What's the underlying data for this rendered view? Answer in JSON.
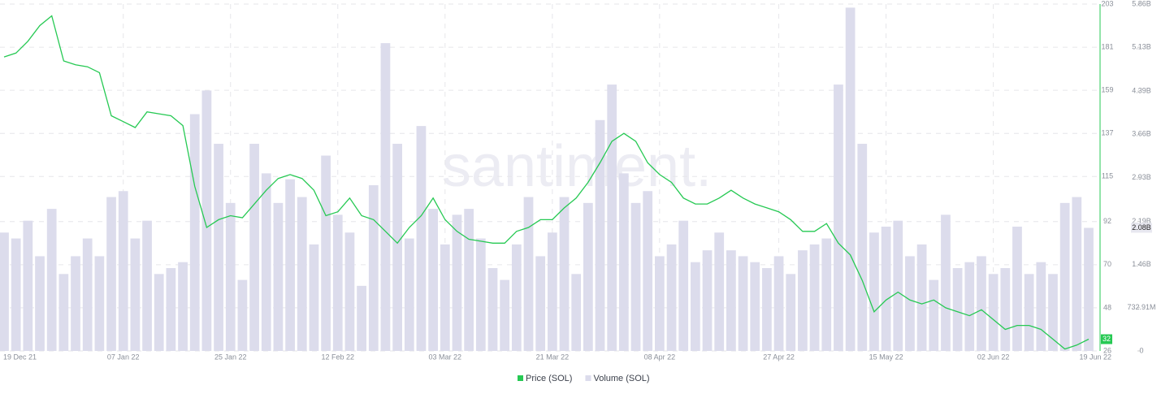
{
  "chart_data": {
    "type": "bar-line",
    "watermark": "santiment.",
    "categories": [
      "19 Dec 21",
      null,
      null,
      null,
      null,
      null,
      null,
      null,
      null,
      null,
      "07 Jan 22",
      null,
      null,
      null,
      null,
      null,
      null,
      null,
      null,
      "25 Jan 22",
      null,
      null,
      null,
      null,
      null,
      null,
      null,
      null,
      "12 Feb 22",
      null,
      null,
      null,
      null,
      null,
      null,
      null,
      null,
      "03 Mar 22",
      null,
      null,
      null,
      null,
      null,
      null,
      null,
      null,
      "21 Mar 22",
      null,
      null,
      null,
      null,
      null,
      null,
      null,
      null,
      "08 Apr 22",
      null,
      null,
      null,
      null,
      null,
      null,
      null,
      null,
      null,
      "27 Apr 22",
      null,
      null,
      null,
      null,
      null,
      null,
      null,
      null,
      "15 May 22",
      null,
      null,
      null,
      null,
      null,
      null,
      null,
      null,
      "02 Jun 22",
      null,
      null,
      null,
      null,
      null,
      null,
      null,
      "19 Jun 22"
    ],
    "series": [
      {
        "name": "Price (SOL)",
        "type": "line",
        "color": "#26c953",
        "axis": "y",
        "values": [
          176,
          178,
          184,
          192,
          197,
          174,
          172,
          171,
          168,
          146,
          143,
          140,
          148,
          147,
          146,
          141,
          110,
          89,
          93,
          95,
          94,
          101,
          108,
          114,
          116,
          114,
          108,
          95,
          97,
          104,
          95,
          93,
          87,
          81,
          89,
          95,
          104,
          93,
          87,
          83,
          82,
          81,
          81,
          87,
          89,
          93,
          93,
          99,
          104,
          112,
          122,
          133,
          137,
          133,
          122,
          116,
          112,
          104,
          101,
          101,
          104,
          108,
          104,
          101,
          99,
          97,
          93,
          87,
          87,
          91,
          81,
          75,
          62,
          46,
          52,
          56,
          52,
          50,
          52,
          48,
          46,
          44,
          47,
          42,
          37,
          39,
          39,
          37,
          32,
          27,
          29,
          32
        ]
      },
      {
        "name": "Volume (SOL)",
        "type": "bar",
        "color": "#dcdcec",
        "axis": "y2",
        "last_value_label": "2.08B",
        "values": [
          2000000000.0,
          1900000000.0,
          2200000000.0,
          1600000000.0,
          2400000000.0,
          1300000000.0,
          1600000000.0,
          1900000000.0,
          1600000000.0,
          2600000000.0,
          2700000000.0,
          1900000000.0,
          2200000000.0,
          1300000000.0,
          1400000000.0,
          1500000000.0,
          4000000000.0,
          4400000000.0,
          3500000000.0,
          2500000000.0,
          1200000000.0,
          3500000000.0,
          3000000000.0,
          2500000000.0,
          2900000000.0,
          2600000000.0,
          1800000000.0,
          3300000000.0,
          2300000000.0,
          2000000000.0,
          1100000000.0,
          2800000000.0,
          5200000000.0,
          3500000000.0,
          1900000000.0,
          3800000000.0,
          2400000000.0,
          1800000000.0,
          2300000000.0,
          2400000000.0,
          1900000000.0,
          1400000000.0,
          1200000000.0,
          1800000000.0,
          2600000000.0,
          1600000000.0,
          2000000000.0,
          2600000000.0,
          1300000000.0,
          2500000000.0,
          3900000000.0,
          4500000000.0,
          3000000000.0,
          2500000000.0,
          2700000000.0,
          1600000000.0,
          1800000000.0,
          2200000000.0,
          1500000000.0,
          1700000000.0,
          2000000000.0,
          1700000000.0,
          1600000000.0,
          1500000000.0,
          1400000000.0,
          1600000000.0,
          1300000000.0,
          1700000000.0,
          1800000000.0,
          1900000000.0,
          4500000000.0,
          5800000000.0,
          3500000000.0,
          2000000000.0,
          2100000000.0,
          2200000000.0,
          1600000000.0,
          1800000000.0,
          1200000000.0,
          2300000000.0,
          1400000000.0,
          1500000000.0,
          1600000000.0,
          1300000000.0,
          1400000000.0,
          2100000000.0,
          1300000000.0,
          1500000000.0,
          1300000000.0,
          2500000000.0,
          2600000000.0,
          2080000000.0
        ]
      }
    ],
    "ylim": [
      26,
      203
    ],
    "yticks": [
      26,
      48,
      70,
      92,
      115,
      137,
      159,
      181,
      203
    ],
    "y2lim": [
      0,
      5860000000
    ],
    "y2ticks": [
      0,
      {
        "value": 732910000,
        "label": "732.91M"
      },
      {
        "value": 1460000000,
        "label": "1.46B"
      },
      {
        "value": 2190000000,
        "label": "2.19B"
      },
      {
        "value": 2930000000,
        "label": "2.93B"
      },
      {
        "value": 3660000000,
        "label": "3.66B"
      },
      {
        "value": 4390000000,
        "label": "4.39B"
      },
      {
        "value": 5130000000,
        "label": "5.13B"
      },
      {
        "value": 5860000000,
        "label": "5.86B"
      }
    ],
    "grid": true
  }
}
